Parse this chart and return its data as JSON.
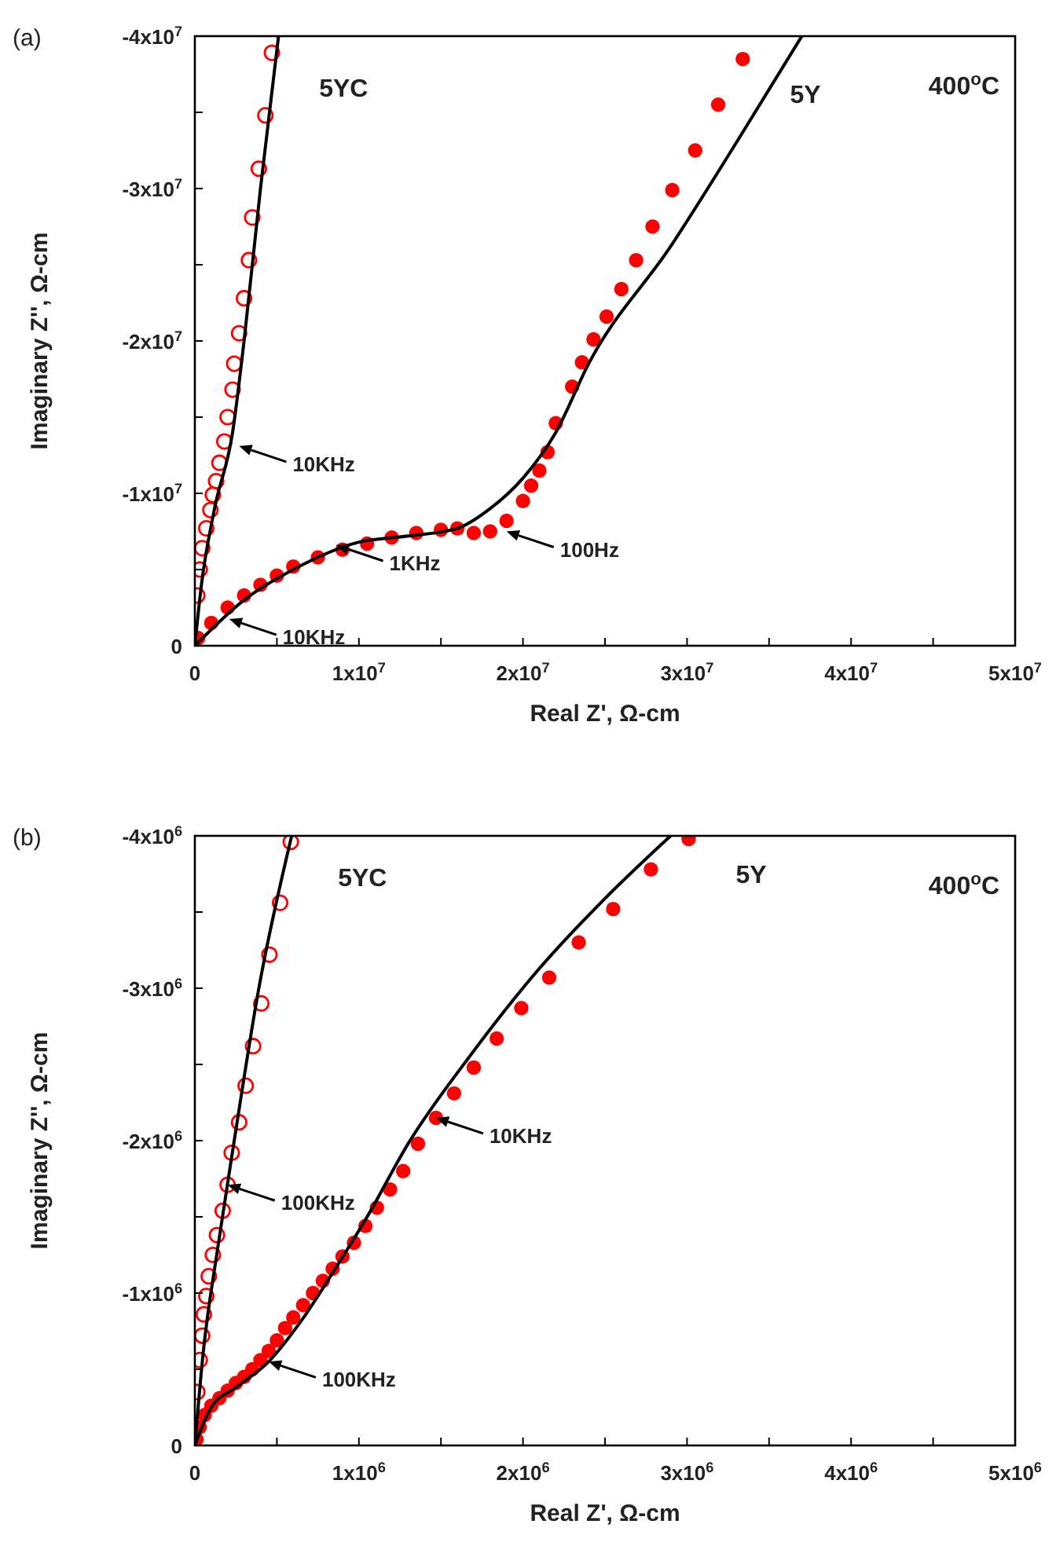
{
  "chart_data": [
    {
      "type": "scatter",
      "xlabel": "Real Z', Ω-cm",
      "ylabel": "Imaginary Z'', Ω-cm",
      "xlim": [
        0,
        50000000
      ],
      "ylim": [
        0,
        -40000000
      ],
      "xticks": [
        0,
        {
          "value": 5000000,
          "label": null
        },
        {
          "value": 10000000,
          "label": "1x10$^{7}$"
        },
        {
          "value": 15000000,
          "label": null
        },
        {
          "value": 20000000,
          "label": "2x10$^{7}$"
        },
        {
          "value": 25000000,
          "label": null
        },
        {
          "value": 30000000,
          "label": "3x10$^{7}$"
        },
        {
          "value": 35000000,
          "label": null
        },
        {
          "value": 40000000,
          "label": "4x10$^{7}$"
        },
        {
          "value": 45000000,
          "label": null
        },
        {
          "value": 50000000,
          "label": "5x10$^{7}$"
        }
      ],
      "yticks": [
        0,
        {
          "value": -5000000,
          "label": null
        },
        {
          "value": -10000000,
          "label": "-1x10$^{7}$"
        },
        {
          "value": -15000000,
          "label": null
        },
        {
          "value": -20000000,
          "label": "-2x10$^{7}$"
        },
        {
          "value": -25000000,
          "label": null
        },
        {
          "value": -30000000,
          "label": "-3x10$^{7}$"
        },
        {
          "value": -35000000,
          "label": null
        },
        {
          "value": -40000000,
          "label": "-4x10$^{7}$"
        }
      ],
      "grid": false,
      "legend": false,
      "annotations": [
        "(a)",
        "400$^{o}$C",
        {
          "text": "10KHz",
          "x": 2700000,
          "y": -13100000
        },
        {
          "text": "1KHz",
          "x": 8600000,
          "y": -6600000
        },
        {
          "text": "100Hz",
          "x": 19000000,
          "y": -7500000
        },
        {
          "text": "10KHz",
          "x": 2100000,
          "y": -1750000
        }
      ],
      "series": [
        {
          "name": "5YC",
          "marker": "circle",
          "color": "#ff0000",
          "x": [
            150000,
            300000,
            450000,
            700000,
            950000,
            1100000,
            1300000,
            1500000,
            1800000,
            2000000,
            2300000,
            2400000,
            2700000,
            3000000,
            3300000,
            3500000,
            3900000,
            4300000,
            4700000
          ],
          "values": [
            -3300000,
            -5000000,
            -6400000,
            -7700000,
            -8900000,
            -9900000,
            -10800000,
            -12000000,
            -13400000,
            -15000000,
            -16800000,
            -18500000,
            -20500000,
            -22800000,
            -25300000,
            -28100000,
            -31300000,
            -34800000,
            -38900000
          ]
        },
        {
          "name": "5Y",
          "marker": "circle",
          "color": "#ff0000",
          "x": [
            200000,
            1000000,
            2000000,
            3000000,
            4000000,
            5000000,
            6000000,
            7500000,
            9000000,
            10500000,
            12000000,
            13500000,
            15000000,
            16000000,
            17000000,
            18000000,
            19000000,
            20000000,
            20500000,
            21000000,
            21500000,
            22000000,
            23000000,
            23600000,
            24300000,
            25100000,
            26000000,
            26900000,
            27900000,
            29100000,
            30500000,
            31900000,
            33400000
          ],
          "values": [
            -500000,
            -1500000,
            -2500000,
            -3300000,
            -4000000,
            -4600000,
            -5200000,
            -5800000,
            -6300000,
            -6700000,
            -7100000,
            -7400000,
            -7600000,
            -7700000,
            -7400000,
            -7500000,
            -8200000,
            -9500000,
            -10500000,
            -11500000,
            -12700000,
            -14600000,
            -17000000,
            -18600000,
            -20100000,
            -21600000,
            -23400000,
            -25300000,
            -27500000,
            -29900000,
            -32500000,
            -35500000,
            -38500000
          ]
        },
        {
          "type": "line",
          "color": "#000000",
          "x": [
            0,
            400000,
            1200000,
            2300000,
            3000000,
            4000000,
            5100000
          ],
          "values": [
            0,
            -4000000,
            -9000000,
            -14000000,
            -20000000,
            -30000000,
            -40000000
          ]
        },
        {
          "type": "line",
          "color": "#000000",
          "x": [
            0,
            3000000,
            6000000,
            10000000,
            13000000,
            16000000,
            18000000,
            20000000,
            22000000,
            24000000,
            29000000,
            33000000,
            37000000
          ],
          "values": [
            0,
            -3000000,
            -5000000,
            -6800000,
            -7200000,
            -7700000,
            -9000000,
            -11000000,
            -14000000,
            -18500000,
            -26200000,
            -33000000,
            -40000000
          ]
        }
      ]
    },
    {
      "type": "scatter",
      "xlabel": "Real Z', Ω-cm",
      "ylabel": "Imaginary Z'', Ω-cm",
      "xlim": [
        0,
        5000000
      ],
      "ylim": [
        0,
        -4000000
      ],
      "xticks": [
        0,
        {
          "value": 500000,
          "label": null
        },
        {
          "value": 1000000,
          "label": "1x10$^{6}$"
        },
        {
          "value": 1500000,
          "label": null
        },
        {
          "value": 2000000,
          "label": "2x10$^{6}$"
        },
        {
          "value": 2500000,
          "label": null
        },
        {
          "value": 3000000,
          "label": "3x10$^{6}$"
        },
        {
          "value": 3500000,
          "label": null
        },
        {
          "value": 4000000,
          "label": "4x10$^{6}$"
        },
        {
          "value": 4500000,
          "label": null
        },
        {
          "value": 5000000,
          "label": "5x10$^{6}$"
        }
      ],
      "yticks": [
        0,
        {
          "value": -500000,
          "label": null
        },
        {
          "value": -1000000,
          "label": "-1x10$^{6}$"
        },
        {
          "value": -1500000,
          "label": null
        },
        {
          "value": -2000000,
          "label": "-2x10$^{6}$"
        },
        {
          "value": -2500000,
          "label": null
        },
        {
          "value": -3000000,
          "label": "-3x10$^{6}$"
        },
        {
          "value": -3500000,
          "label": null
        },
        {
          "value": -4000000,
          "label": "-4x10$^{6}$"
        }
      ],
      "grid": false,
      "legend": false,
      "annotations": [
        "(b)",
        "400$^{o}$C",
        {
          "text": "100KHz",
          "x": 200000,
          "y": -1710000
        },
        {
          "text": "10KHz",
          "x": 1470000,
          "y": -2150000
        },
        {
          "text": "100KHz",
          "x": 450000,
          "y": -550000
        }
      ],
      "series": [
        {
          "name": "5YC",
          "marker": "circle",
          "color": "#ff0000",
          "x": [
            15000,
            30000,
            45000,
            55000,
            70000,
            85000,
            110000,
            135000,
            170000,
            200000,
            225000,
            270000,
            310000,
            355000,
            405000,
            455000,
            520000,
            585000
          ],
          "values": [
            -350000,
            -560000,
            -720000,
            -860000,
            -980000,
            -1110000,
            -1250000,
            -1380000,
            -1540000,
            -1710000,
            -1920000,
            -2120000,
            -2360000,
            -2620000,
            -2900000,
            -3220000,
            -3560000,
            -3960000
          ]
        },
        {
          "name": "5Y",
          "marker": "circle",
          "color": "#ff0000",
          "x": [
            10000,
            30000,
            60000,
            100000,
            150000,
            200000,
            250000,
            300000,
            350000,
            400000,
            450000,
            500000,
            550000,
            600000,
            660000,
            720000,
            780000,
            840000,
            900000,
            970000,
            1040000,
            1110000,
            1190000,
            1270000,
            1360000,
            1470000,
            1580000,
            1700000,
            1840000,
            1990000,
            2160000,
            2340000,
            2550000,
            2780000,
            3010000
          ],
          "values": [
            -40000,
            -120000,
            -200000,
            -260000,
            -310000,
            -360000,
            -410000,
            -450000,
            -500000,
            -560000,
            -620000,
            -690000,
            -770000,
            -840000,
            -920000,
            -1000000,
            -1080000,
            -1160000,
            -1240000,
            -1330000,
            -1440000,
            -1560000,
            -1680000,
            -1800000,
            -1980000,
            -2150000,
            -2310000,
            -2480000,
            -2670000,
            -2870000,
            -3070000,
            -3300000,
            -3520000,
            -3780000,
            -3980000
          ]
        },
        {
          "type": "line",
          "color": "#000000",
          "x": [
            0,
            50000,
            140000,
            240000,
            390000,
            590000
          ],
          "values": [
            0,
            -600000,
            -1300000,
            -2000000,
            -3000000,
            -4000000
          ]
        },
        {
          "type": "line",
          "color": "#000000",
          "x": [
            0,
            100000,
            250000,
            450000,
            650000,
            850000,
            1050000,
            1300000,
            1680000,
            2100000,
            2510000,
            2900000
          ],
          "values": [
            0,
            -250000,
            -380000,
            -550000,
            -820000,
            -1150000,
            -1500000,
            -1980000,
            -2560000,
            -3130000,
            -3600000,
            -4000000
          ]
        }
      ]
    }
  ]
}
